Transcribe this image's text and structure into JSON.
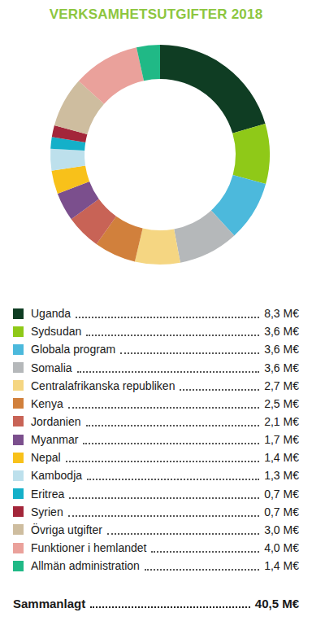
{
  "chart_data": {
    "type": "pie",
    "donut": true,
    "title": "VERKSAMHETSUTGIFTER 2018",
    "categories": [
      "Uganda",
      "Sydsudan",
      "Globala program",
      "Somalia",
      "Centralafrikanska republiken",
      "Kenya",
      "Jordanien",
      "Myanmar",
      "Nepal",
      "Kambodja",
      "Eritrea",
      "Syrien",
      "Övriga utgifter",
      "Funktioner i hemlandet",
      "Allmän administration"
    ],
    "values": [
      8.3,
      3.6,
      3.6,
      3.6,
      2.7,
      2.5,
      2.1,
      1.7,
      1.4,
      1.3,
      0.7,
      0.7,
      3.0,
      4.0,
      1.4
    ],
    "value_labels": [
      "8,3 M€",
      "3,6 M€",
      "3,6 M€",
      "3,6 M€",
      "2,7 M€",
      "2,5 M€",
      "2,1 M€",
      "1,7 M€",
      "1,4 M€",
      "1,3 M€",
      "0,7 M€",
      "0,7 M€",
      "3,0 M€",
      "4,0 M€",
      "1,4 M€"
    ],
    "colors": [
      "#0f3d23",
      "#8fc918",
      "#4cb9dc",
      "#b5b8ba",
      "#f5d682",
      "#d1803c",
      "#c86356",
      "#7b4f8d",
      "#f8c11a",
      "#bde0ec",
      "#14b0c9",
      "#a3263a",
      "#cebd9f",
      "#eaa19b",
      "#20b986"
    ],
    "total": {
      "label": "Sammanlagt",
      "value": 40.5,
      "value_label": "40,5 M€"
    }
  }
}
